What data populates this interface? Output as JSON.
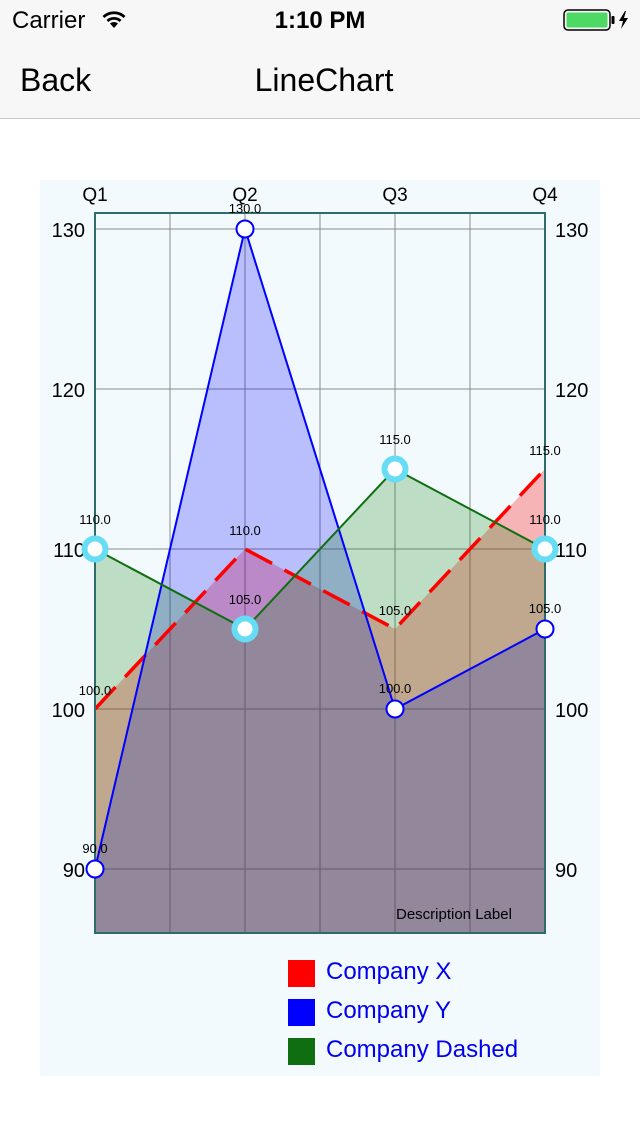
{
  "status_bar": {
    "carrier": "Carrier",
    "time": "1:10 PM"
  },
  "nav": {
    "back_label": "Back",
    "title": "LineChart"
  },
  "chart_data": {
    "type": "line",
    "categories": [
      "Q1",
      "Q2",
      "Q3",
      "Q4"
    ],
    "ylim": [
      86,
      131
    ],
    "yticks": [
      90,
      100,
      110,
      120,
      130
    ],
    "grid": true,
    "description": "Description Label",
    "series": [
      {
        "name": "Company X",
        "values": [
          100.0,
          110.0,
          105.0,
          115.0
        ],
        "color": "#ff0000",
        "fill": "#ff0000",
        "dashed": true
      },
      {
        "name": "Company Y",
        "values": [
          90.0,
          130.0,
          100.0,
          105.0
        ],
        "color": "#0000ff",
        "fill": "#0000ff",
        "dashed": false
      },
      {
        "name": "Company Dashed",
        "values": [
          110.0,
          105.0,
          115.0,
          110.0
        ],
        "color": "#0f6e0f",
        "fill": "#0f800f",
        "dashed": false
      }
    ],
    "legend_position": "bottom"
  },
  "colors": {
    "legend_text": "#0000ee",
    "background": "#f3fafd",
    "frame": "#2f6b6b"
  }
}
